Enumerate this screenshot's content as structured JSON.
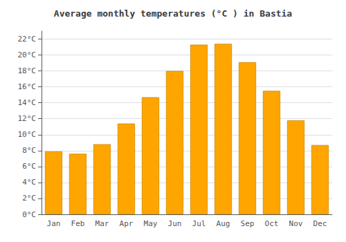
{
  "chart_data": {
    "type": "bar",
    "title": "Average monthly temperatures (°C ) in Bastia",
    "categories": [
      "Jan",
      "Feb",
      "Mar",
      "Apr",
      "May",
      "Jun",
      "Jul",
      "Aug",
      "Sep",
      "Oct",
      "Nov",
      "Dec"
    ],
    "values": [
      7.9,
      7.6,
      8.8,
      11.4,
      14.7,
      18.0,
      21.3,
      21.4,
      19.1,
      15.5,
      11.8,
      8.7
    ],
    "color": "#FFA500",
    "ylim": [
      0,
      23
    ],
    "yticks": [
      {
        "value": 0,
        "label": "0°C"
      },
      {
        "value": 2,
        "label": "2°C"
      },
      {
        "value": 4,
        "label": "4°C"
      },
      {
        "value": 6,
        "label": "6°C"
      },
      {
        "value": 8,
        "label": "8°C"
      },
      {
        "value": 10,
        "label": "10°C"
      },
      {
        "value": 12,
        "label": "12°C"
      },
      {
        "value": 14,
        "label": "14°C"
      },
      {
        "value": 16,
        "label": "16°C"
      },
      {
        "value": 18,
        "label": "18°C"
      },
      {
        "value": 20,
        "label": "20°C"
      },
      {
        "value": 22,
        "label": "22°C"
      }
    ],
    "grid": true
  }
}
